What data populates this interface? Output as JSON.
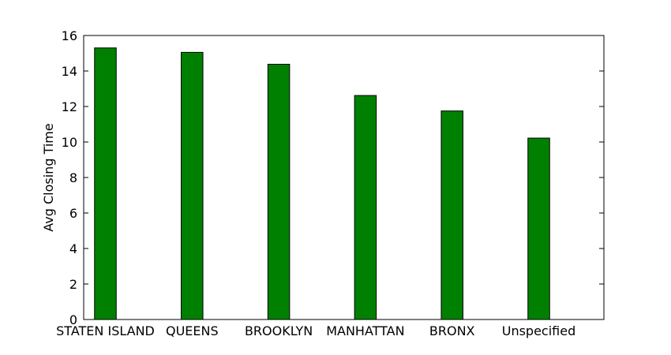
{
  "chart_data": {
    "type": "bar",
    "title": "",
    "xlabel": "",
    "ylabel": "Avg Closing Time",
    "categories": [
      "STATEN ISLAND",
      "QUEENS",
      "BROOKLYN",
      "MANHATTAN",
      "BRONX",
      "Unspecified"
    ],
    "values": [
      15.3,
      15.05,
      14.38,
      12.62,
      11.75,
      10.22
    ],
    "ylim": [
      0,
      16
    ],
    "yticks": [
      0,
      2,
      4,
      6,
      8,
      10,
      12,
      14,
      16
    ],
    "bar_color": "#008000",
    "edge_color": "#000000",
    "grid": false,
    "legend": "none"
  }
}
